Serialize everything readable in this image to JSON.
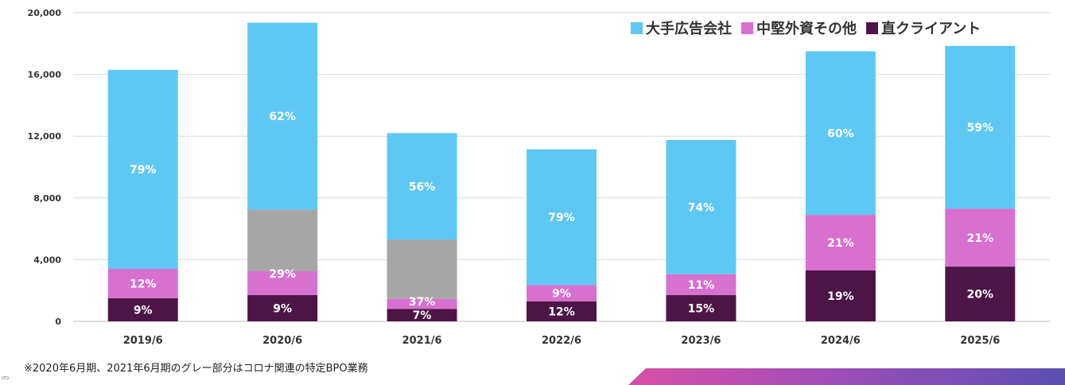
{
  "colors": {
    "major_agencies": "#5ec8f4",
    "mid_foreign_other": "#d770cf",
    "direct_clients": "#4d1546",
    "covid_bpo": "#a6a6a6",
    "grid": "#d9d9d9"
  },
  "legend": {
    "items": [
      {
        "label": "大手広告会社",
        "color": "#5ec8f4"
      },
      {
        "label": "中堅外資その他",
        "color": "#d770cf"
      },
      {
        "label": "直クライアント",
        "color": "#4d1546"
      }
    ]
  },
  "footnote": "※2020年6月期、2021年6月期のグレー部分はコロナ関連の特定BPO業務",
  "corner_text": "LTD.",
  "chart_data": {
    "type": "bar",
    "stacked": true,
    "categories": [
      "2019/6",
      "2020/6",
      "2021/6",
      "2022/6",
      "2023/6",
      "2024/6",
      "2025/6"
    ],
    "y_ticks": [
      "0",
      "4,000",
      "8,000",
      "12,000",
      "16,000",
      "20,000"
    ],
    "ylim": [
      0,
      20000
    ],
    "grid": true,
    "legend_position": "top-right",
    "series": [
      {
        "name": "直クライアント",
        "color": "#4d1546",
        "values": [
          1500,
          1700,
          800,
          1300,
          1700,
          3300,
          3550
        ],
        "labels": [
          "9%",
          "9%",
          "7%",
          "12%",
          "15%",
          "19%",
          "20%"
        ]
      },
      {
        "name": "中堅外資その他",
        "color": "#d770cf",
        "values": [
          1900,
          1550,
          650,
          1050,
          1350,
          3600,
          3750
        ],
        "labels": [
          "12%",
          "29%",
          "37%",
          "9%",
          "11%",
          "21%",
          "21%"
        ]
      },
      {
        "color": "#a6a6a6",
        "values": [
          0,
          4000,
          3850,
          0,
          0,
          0,
          0
        ],
        "labels": [
          "",
          "",
          "",
          "",
          "",
          "",
          ""
        ]
      },
      {
        "name": "大手広告会社",
        "color": "#5ec8f4",
        "values": [
          12900,
          12100,
          6900,
          8800,
          8700,
          10600,
          10550
        ],
        "labels": [
          "79%",
          "62%",
          "56%",
          "79%",
          "74%",
          "60%",
          "59%"
        ]
      }
    ]
  }
}
